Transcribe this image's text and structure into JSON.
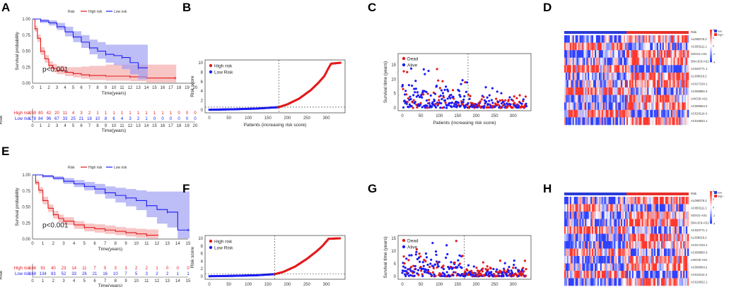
{
  "colors": {
    "high": "#e41a1c",
    "low": "#1c1cf5",
    "high_band": "#f4a6a6",
    "low_band": "#9a9af2",
    "dead": "#e41a1c",
    "alive": "#1c1cf5",
    "heat_high": "#e8302a",
    "heat_low": "#2b3bd6"
  },
  "panels": {
    "A": "A",
    "B": "B",
    "C": "C",
    "D": "D",
    "E": "E",
    "F": "F",
    "G": "G",
    "H": "H"
  },
  "chart_data": [
    {
      "panel": "A",
      "type": "line",
      "title": "",
      "legend_title": "Risk",
      "legend": [
        "High risk",
        "Low risk"
      ],
      "xlabel": "Time(years)",
      "ylabel": "Survival probability",
      "xlim": [
        0,
        20
      ],
      "ylim": [
        0,
        1
      ],
      "xticks": [
        "0",
        "1",
        "2",
        "3",
        "4",
        "5",
        "6",
        "7",
        "8",
        "9",
        "10",
        "11",
        "12",
        "13",
        "14",
        "15",
        "16",
        "17",
        "18",
        "19",
        "20"
      ],
      "yticks": [
        "0.00",
        "0.25",
        "0.50",
        "0.75",
        "1.00"
      ],
      "annotation": "p<0.001",
      "series": [
        {
          "name": "High risk",
          "x": [
            0,
            0.3,
            0.6,
            1,
            1.5,
            2,
            2.5,
            3,
            4,
            5,
            6,
            7,
            9,
            12,
            14,
            17.5
          ],
          "y": [
            1,
            0.85,
            0.7,
            0.5,
            0.38,
            0.28,
            0.23,
            0.2,
            0.17,
            0.15,
            0.13,
            0.12,
            0.11,
            0.1,
            0.08,
            0.08
          ],
          "lower": [
            1,
            0.8,
            0.64,
            0.44,
            0.32,
            0.22,
            0.17,
            0.14,
            0.11,
            0.09,
            0.07,
            0.05,
            0.04,
            0.03,
            0.01,
            0.01
          ],
          "upper": [
            1,
            0.9,
            0.76,
            0.56,
            0.44,
            0.34,
            0.3,
            0.27,
            0.25,
            0.25,
            0.26,
            0.27,
            0.29,
            0.29,
            0.29,
            0.29
          ]
        },
        {
          "name": "Low risk",
          "x": [
            0,
            1,
            2,
            3,
            4,
            5,
            6,
            7,
            8,
            9,
            10,
            11,
            12,
            13,
            14
          ],
          "y": [
            1,
            0.97,
            0.94,
            0.88,
            0.8,
            0.72,
            0.64,
            0.55,
            0.5,
            0.45,
            0.43,
            0.4,
            0.32,
            0.24,
            0.24
          ],
          "lower": [
            1,
            0.94,
            0.9,
            0.83,
            0.73,
            0.64,
            0.55,
            0.45,
            0.38,
            0.32,
            0.28,
            0.22,
            0.14,
            0.06,
            0.06
          ],
          "upper": [
            1,
            1,
            0.98,
            0.94,
            0.88,
            0.81,
            0.75,
            0.68,
            0.64,
            0.6,
            0.6,
            0.6,
            0.6,
            0.6,
            0.6
          ]
        }
      ],
      "risk_table": {
        "label": "Risk",
        "rows": [
          {
            "name": "High risk",
            "values": [
              "159",
              "80",
              "42",
              "20",
              "11",
              "4",
              "3",
              "2",
              "1",
              "1",
              "1",
              "1",
              "1",
              "1",
              "1",
              "1",
              "1",
              "1",
              "0",
              "0",
              "0"
            ]
          },
          {
            "name": "Low risk",
            "values": [
              "178",
              "84",
              "96",
              "67",
              "33",
              "25",
              "21",
              "18",
              "10",
              "8",
              "6",
              "4",
              "3",
              "2",
              "1",
              "0",
              "0",
              "0",
              "0",
              "0",
              "0"
            ]
          }
        ],
        "xlabel": "Time(years)"
      }
    },
    {
      "panel": "B",
      "type": "scatter",
      "title": "",
      "legend": [
        "High risk",
        "Low Risk"
      ],
      "xlabel": "Patients (increasing risk score)",
      "ylabel": "Risk score",
      "xlim": [
        0,
        337
      ],
      "ylim": [
        0,
        10
      ],
      "xticks": [
        "0",
        "50",
        "100",
        "150",
        "200",
        "250",
        "300"
      ],
      "yticks": [
        "0",
        "2",
        "4",
        "6",
        "8",
        "10"
      ],
      "cutoff_index": 178,
      "cutoff_score": 0.6,
      "n": 337,
      "curve_knots": [
        [
          0,
          0.05
        ],
        [
          60,
          0.15
        ],
        [
          120,
          0.3
        ],
        [
          178,
          0.6
        ],
        [
          200,
          1.2
        ],
        [
          230,
          2.4
        ],
        [
          260,
          4.2
        ],
        [
          280,
          5.8
        ],
        [
          295,
          7.2
        ],
        [
          305,
          8.8
        ],
        [
          312,
          9.8
        ],
        [
          337,
          10
        ]
      ]
    },
    {
      "panel": "C",
      "type": "scatter",
      "title": "",
      "legend": [
        "Dead",
        "Alive"
      ],
      "xlabel": "Patients (increasing risk score)",
      "ylabel": "Survival time (years)",
      "xlim": [
        0,
        337
      ],
      "ylim": [
        0,
        18
      ],
      "xticks": [
        "0",
        "50",
        "100",
        "150",
        "200",
        "250",
        "300"
      ],
      "yticks": [
        "0",
        "5",
        "10",
        "15"
      ],
      "cutoff_index": 178,
      "n": 337,
      "seed": 7
    },
    {
      "panel": "D",
      "type": "heatmap",
      "title": "",
      "legend_title": "Risk",
      "legend": [
        "low",
        "high"
      ],
      "scale_ticks": [
        "4",
        "2",
        "0",
        "-2",
        "-4"
      ],
      "row_labels": [
        "AL080276.2",
        "AC093111.1",
        "SOX21-AS1",
        "DNAJC9-AS1",
        "AC020771.1",
        "AL356019.2",
        "AC017104.1",
        "AC008850.3",
        "LINC00-AS1",
        "AC006064.2",
        "AC010114.4",
        "AC016822.1"
      ],
      "n_cols": 90,
      "split": 0.5,
      "seed": 11
    },
    {
      "panel": "E",
      "type": "line",
      "title": "",
      "legend_title": "Risk",
      "legend": [
        "High risk",
        "Low risk"
      ],
      "xlabel": "Time(years)",
      "ylabel": "Survival probability",
      "xlim": [
        0,
        15
      ],
      "ylim": [
        0,
        1
      ],
      "xticks": [
        "0",
        "1",
        "2",
        "3",
        "4",
        "5",
        "6",
        "7",
        "8",
        "9",
        "10",
        "11",
        "12",
        "13",
        "14",
        "15"
      ],
      "yticks": [
        "0.00",
        "0.25",
        "0.50",
        "0.75",
        "1.00"
      ],
      "annotation": "p<0.001",
      "series": [
        {
          "name": "High risk",
          "x": [
            0,
            0.3,
            0.6,
            1,
            1.5,
            2,
            2.5,
            3,
            4,
            5,
            6,
            7,
            8,
            9,
            10,
            11,
            12
          ],
          "y": [
            1,
            0.88,
            0.76,
            0.6,
            0.48,
            0.38,
            0.32,
            0.28,
            0.22,
            0.18,
            0.16,
            0.14,
            0.12,
            0.1,
            0.08,
            0.06,
            0.06
          ],
          "lower": [
            1,
            0.84,
            0.71,
            0.54,
            0.42,
            0.32,
            0.26,
            0.22,
            0.16,
            0.12,
            0.1,
            0.08,
            0.06,
            0.04,
            0.02,
            0.01,
            0.01
          ],
          "upper": [
            1,
            0.92,
            0.81,
            0.66,
            0.54,
            0.44,
            0.38,
            0.34,
            0.28,
            0.24,
            0.23,
            0.21,
            0.19,
            0.17,
            0.16,
            0.15,
            0.15
          ]
        },
        {
          "name": "Low risk",
          "x": [
            0,
            1,
            2,
            3,
            4,
            5,
            6,
            7,
            8,
            9,
            10,
            11,
            12,
            13,
            14,
            15
          ],
          "y": [
            1,
            0.98,
            0.95,
            0.9,
            0.86,
            0.82,
            0.78,
            0.72,
            0.68,
            0.64,
            0.6,
            0.52,
            0.46,
            0.42,
            0.14,
            0.14
          ],
          "lower": [
            1,
            0.96,
            0.92,
            0.86,
            0.81,
            0.76,
            0.7,
            0.63,
            0.57,
            0.51,
            0.45,
            0.34,
            0.24,
            0.18,
            0.01,
            0.01
          ],
          "upper": [
            1,
            1,
            0.98,
            0.95,
            0.92,
            0.89,
            0.86,
            0.82,
            0.8,
            0.78,
            0.76,
            0.74,
            0.74,
            0.74,
            0.74,
            0.74
          ]
        }
      ],
      "risk_table": {
        "label": "Risk",
        "rows": [
          {
            "name": "High risk",
            "values": [
              "168",
              "91",
              "40",
              "23",
              "14",
              "11",
              "7",
              "5",
              "3",
              "3",
              "2",
              "2",
              "1",
              "0",
              "0",
              "0"
            ]
          },
          {
            "name": "Low risk",
            "values": [
              "168",
              "134",
              "83",
              "52",
              "33",
              "26",
              "21",
              "16",
              "10",
              "7",
              "5",
              "3",
              "2",
              "2",
              "1",
              "1"
            ]
          }
        ],
        "xlabel": "Time(years)"
      }
    },
    {
      "panel": "F",
      "type": "scatter",
      "title": "",
      "legend": [
        "High risk",
        "Low Risk"
      ],
      "xlabel": "Patients (increasing risk score)",
      "ylabel": "Risk score",
      "xlim": [
        0,
        337
      ],
      "ylim": [
        0,
        10
      ],
      "xticks": [
        "0",
        "50",
        "100",
        "150",
        "200",
        "250",
        "300"
      ],
      "yticks": [
        "0",
        "2",
        "4",
        "6",
        "8",
        "10"
      ],
      "cutoff_index": 168,
      "cutoff_score": 0.6,
      "n": 336,
      "curve_knots": [
        [
          0,
          0.05
        ],
        [
          60,
          0.15
        ],
        [
          120,
          0.3
        ],
        [
          168,
          0.6
        ],
        [
          190,
          1.2
        ],
        [
          220,
          2.6
        ],
        [
          250,
          4.6
        ],
        [
          275,
          6.6
        ],
        [
          290,
          8.0
        ],
        [
          300,
          9.2
        ],
        [
          306,
          9.9
        ],
        [
          336,
          10
        ]
      ]
    },
    {
      "panel": "G",
      "type": "scatter",
      "title": "",
      "legend": [
        "Dead",
        "Alive"
      ],
      "xlabel": "Patients (increasing risk score)",
      "ylabel": "Survival time (years)",
      "xlim": [
        0,
        337
      ],
      "ylim": [
        0,
        15
      ],
      "xticks": [
        "0",
        "50",
        "100",
        "150",
        "200",
        "250",
        "300"
      ],
      "yticks": [
        "0",
        "5",
        "10",
        "15"
      ],
      "cutoff_index": 168,
      "n": 336,
      "seed": 23
    },
    {
      "panel": "H",
      "type": "heatmap",
      "title": "",
      "legend_title": "Risk",
      "legend": [
        "low",
        "high"
      ],
      "scale_ticks": [
        "4",
        "2",
        "0",
        "-2",
        "-4"
      ],
      "row_labels": [
        "AL080276.2",
        "AC093111.1",
        "SOX21-AS1",
        "DNAJC9-AS1",
        "AC020771.1",
        "AL356019.2",
        "AC017104.1",
        "AC008850.3",
        "LINC00-AS1",
        "AC006064.2",
        "AC010114.4",
        "AC016822.1"
      ],
      "n_cols": 90,
      "split": 0.5,
      "seed": 31
    }
  ]
}
